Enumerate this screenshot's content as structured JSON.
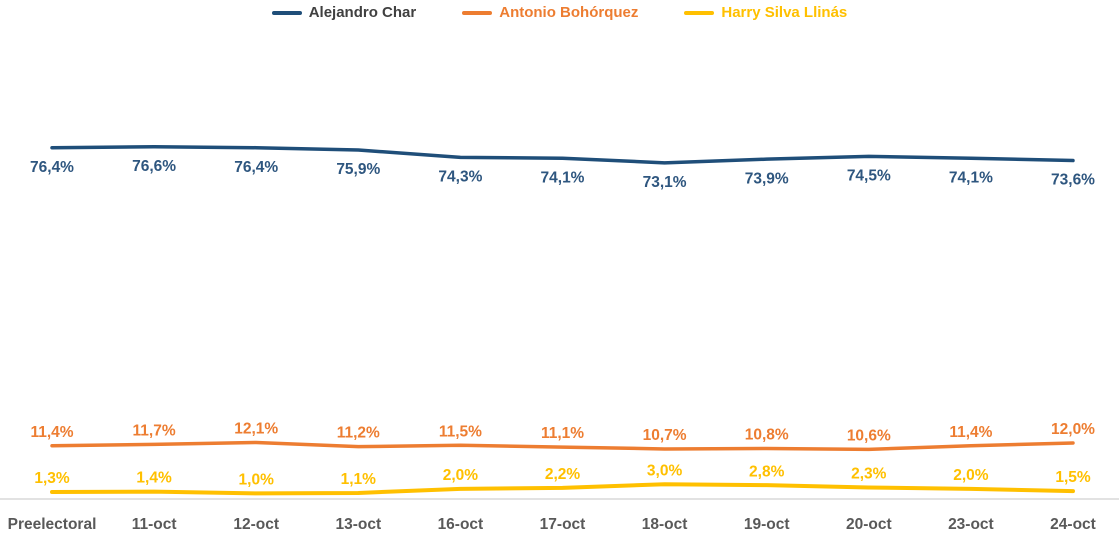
{
  "chart_data": {
    "type": "line",
    "title": "",
    "xlabel": "",
    "ylabel": "",
    "value_suffix": "%",
    "decimal_separator": ",",
    "legend_position": "top",
    "grid": false,
    "ylim": [
      0,
      80
    ],
    "axis_line_color": "#d9d9d9",
    "axis_label_color": "#595959",
    "categories": [
      "Preelectoral",
      "11-oct",
      "12-oct",
      "13-oct",
      "16-oct",
      "17-oct",
      "18-oct",
      "19-oct",
      "20-oct",
      "23-oct",
      "24-oct"
    ],
    "series": [
      {
        "name": "Alejandro Char",
        "color": "#1F4E79",
        "label_color": "#2E567F",
        "legend_text_color": "#404040",
        "label_position": "below",
        "stroke_width": 3.5,
        "values": [
          76.4,
          76.6,
          76.4,
          75.9,
          74.3,
          74.1,
          73.1,
          73.9,
          74.5,
          74.1,
          73.6
        ]
      },
      {
        "name": "Antonio Bohórquez",
        "color": "#ED7D31",
        "label_color": "#ED7D31",
        "legend_text_color": "#ED7D31",
        "label_position": "above",
        "stroke_width": 3.5,
        "values": [
          11.4,
          11.7,
          12.1,
          11.2,
          11.5,
          11.1,
          10.7,
          10.8,
          10.6,
          11.4,
          12.0
        ]
      },
      {
        "name": "Harry Silva Llinás",
        "color": "#FFC000",
        "label_color": "#FFC000",
        "legend_text_color": "#FFC000",
        "label_position": "above",
        "stroke_width": 4,
        "values": [
          1.3,
          1.4,
          1.0,
          1.1,
          2.0,
          2.2,
          3.0,
          2.8,
          2.3,
          2.0,
          1.5
        ]
      }
    ]
  }
}
